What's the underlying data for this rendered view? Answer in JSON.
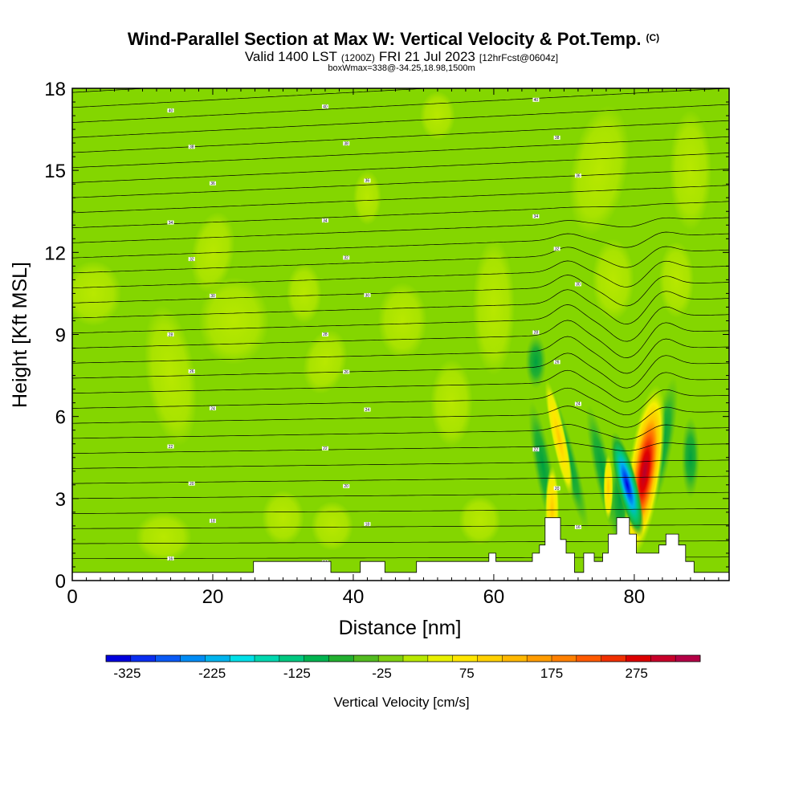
{
  "chart_data": {
    "type": "heatmap",
    "title": "Wind-Parallel Section at Max W: Vertical Velocity & Pot.Temp.",
    "title_mark": "(C)",
    "subtitle_main_a": "Valid 1400 LST",
    "subtitle_small_a": "(1200Z)",
    "subtitle_main_b": "FRI 21 Jul 2023",
    "subtitle_small_b": "[12hrFcst@0604z]",
    "subtitle2": "boxWmax=338@-34.25,18.98,1500m",
    "xlabel": "Distance [nm]",
    "ylabel": "Height [Kft MSL]",
    "xlim": [
      0,
      93.5
    ],
    "ylim": [
      0,
      18
    ],
    "xticks": [
      0,
      20,
      40,
      60,
      80
    ],
    "yticks": [
      0,
      3,
      6,
      9,
      12,
      15,
      18
    ],
    "colorbar": {
      "label": "Vertical Velocity [cm/s]",
      "min": -350,
      "max": 350,
      "step": 25,
      "tick_values": [
        -325,
        -225,
        -125,
        -25,
        75,
        175,
        275
      ],
      "tick_labels": [
        "-325",
        "-225",
        "-125",
        "-25",
        "75",
        "175",
        "275"
      ],
      "colors": [
        "#0000dd",
        "#0a2ef0",
        "#0a5af5",
        "#008cf5",
        "#00b4ee",
        "#00e0e8",
        "#00d8b0",
        "#00c880",
        "#00b450",
        "#22b030",
        "#52bb20",
        "#7ed010",
        "#b8e800",
        "#e8f000",
        "#ffe600",
        "#ffd000",
        "#ffb800",
        "#ff9c00",
        "#ff8000",
        "#ff5a00",
        "#f03000",
        "#dc0000",
        "#c8002a",
        "#b40046"
      ]
    },
    "background_velocity": "-25 to 0 cm/s",
    "features": [
      {
        "name": "updraft core",
        "x": 81.5,
        "height_range": [
          0.8,
          7.2
        ],
        "max_velocity": 338
      },
      {
        "name": "downdraft core",
        "x": 79.0,
        "height_range": [
          1.5,
          5.5
        ],
        "min_velocity": -325
      },
      {
        "name": "weak updraft",
        "x": 68.5,
        "height_range": [
          1.2,
          7.0
        ],
        "max_velocity": 80
      }
    ],
    "isentrope_labels": [
      "40",
      "40",
      "40",
      "38",
      "38",
      "38",
      "36",
      "36",
      "36",
      "34",
      "34",
      "34",
      "32",
      "32",
      "32",
      "30",
      "30",
      "30",
      "28",
      "28",
      "28",
      "26",
      "26",
      "26",
      "24",
      "24",
      "24",
      "22",
      "22",
      "22",
      "20",
      "20",
      "20",
      "18",
      "18",
      "16",
      "16",
      "14"
    ],
    "terrain_heights_kft": [
      [
        0,
        0.3
      ],
      [
        25.8,
        0.3
      ],
      [
        25.8,
        0.7
      ],
      [
        36.8,
        0.7
      ],
      [
        36.8,
        0.3
      ],
      [
        41,
        0.3
      ],
      [
        41,
        0.7
      ],
      [
        44.5,
        0.7
      ],
      [
        44.5,
        0.3
      ],
      [
        49,
        0.3
      ],
      [
        49,
        0.7
      ],
      [
        59.3,
        0.7
      ],
      [
        59.3,
        1.0
      ],
      [
        60.3,
        1.0
      ],
      [
        60.3,
        0.7
      ],
      [
        65.5,
        0.7
      ],
      [
        65.5,
        1.0
      ],
      [
        66.5,
        1.0
      ],
      [
        66.5,
        1.3
      ],
      [
        67.3,
        1.3
      ],
      [
        67.3,
        2.3
      ],
      [
        69.5,
        2.3
      ],
      [
        69.5,
        1.5
      ],
      [
        70.3,
        1.5
      ],
      [
        70.3,
        1.0
      ],
      [
        71.5,
        1.0
      ],
      [
        71.5,
        0.3
      ],
      [
        72.8,
        0.3
      ],
      [
        72.8,
        1.0
      ],
      [
        74.3,
        1.0
      ],
      [
        74.3,
        0.7
      ],
      [
        75.5,
        0.7
      ],
      [
        75.5,
        1.0
      ],
      [
        76.3,
        1.0
      ],
      [
        76.3,
        1.7
      ],
      [
        77.5,
        1.7
      ],
      [
        77.5,
        2.3
      ],
      [
        79.3,
        2.3
      ],
      [
        79.3,
        1.7
      ],
      [
        80.3,
        1.7
      ],
      [
        80.3,
        1.0
      ],
      [
        83.5,
        1.0
      ],
      [
        83.5,
        1.3
      ],
      [
        84.5,
        1.3
      ],
      [
        84.5,
        1.7
      ],
      [
        86.3,
        1.7
      ],
      [
        86.3,
        1.3
      ],
      [
        87.3,
        1.3
      ],
      [
        87.3,
        0.7
      ],
      [
        88.5,
        0.7
      ],
      [
        88.5,
        0.3
      ],
      [
        93.5,
        0.3
      ]
    ]
  }
}
